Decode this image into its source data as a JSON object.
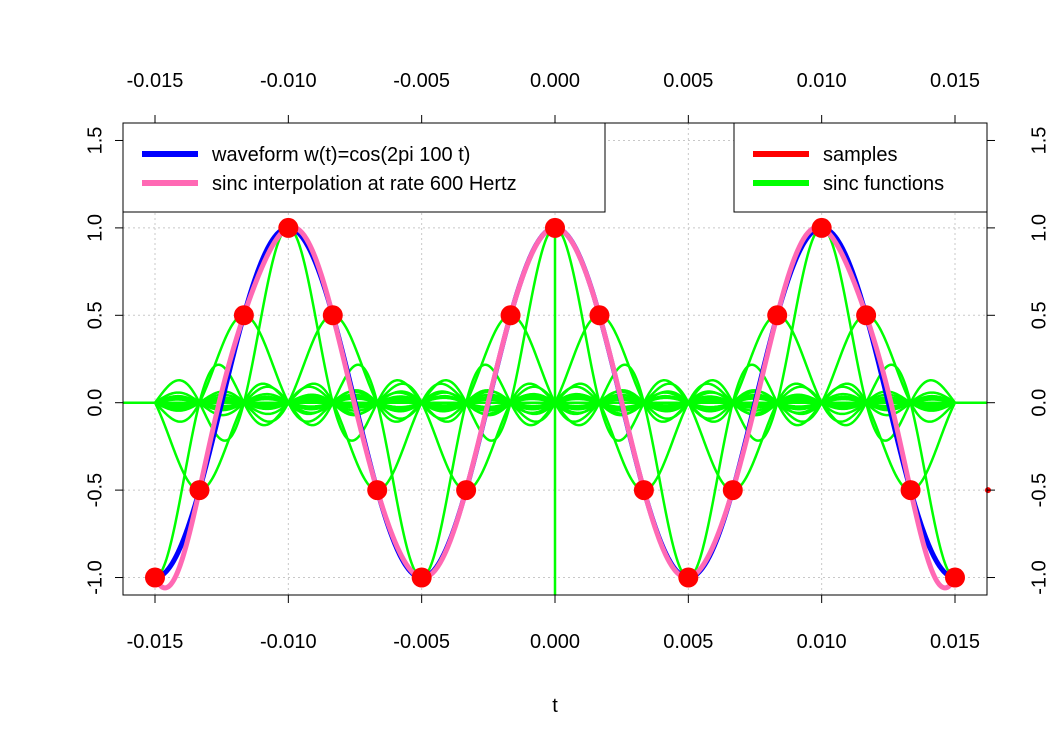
{
  "chart_data": {
    "type": "line",
    "xlabel": "t",
    "ylabel": "",
    "xlim": [
      -0.0162,
      0.0162
    ],
    "ylim": [
      -1.1,
      1.6
    ],
    "grid": true,
    "x_ticks": [
      "-0.015",
      "-0.010",
      "-0.005",
      "0.000",
      "0.005",
      "0.010",
      "0.015"
    ],
    "x_tick_values": [
      -0.015,
      -0.01,
      -0.005,
      0,
      0.005,
      0.01,
      0.015
    ],
    "y_ticks": [
      "-1.0",
      "-0.5",
      "0.0",
      "0.5",
      "1.0",
      "1.5"
    ],
    "y_tick_values": [
      -1.0,
      -0.5,
      0.0,
      0.5,
      1.0,
      1.5
    ],
    "waveform_frequency_hz": 100,
    "sample_rate_hz": 600,
    "samples": {
      "t": [
        -0.015,
        -0.013333,
        -0.011667,
        -0.01,
        -0.008333,
        -0.006667,
        -0.005,
        -0.003333,
        -0.001667,
        0.0,
        0.001667,
        0.003333,
        0.005,
        0.006667,
        0.008333,
        0.01,
        0.011667,
        0.013333,
        0.015
      ],
      "values": [
        -1.0,
        -0.5,
        0.5,
        1.0,
        0.5,
        -0.5,
        -1.0,
        -0.5,
        0.5,
        1.0,
        0.5,
        -0.5,
        -1.0,
        -0.5,
        0.5,
        1.0,
        0.5,
        -0.5,
        -1.0
      ]
    },
    "series": [
      {
        "name": "waveform w(t)=cos(2pi 100 t)",
        "color": "#0000ff"
      },
      {
        "name": "sinc interpolation at rate 600 Hertz",
        "color": "#ff69b4"
      },
      {
        "name": "samples",
        "color": "#ff0000"
      },
      {
        "name": "sinc functions",
        "color": "#00ff00"
      }
    ],
    "legend_left": {
      "placement": "top-left",
      "entries": [
        {
          "label": "waveform w(t)=cos(2pi 100 t)",
          "color": "#0000ff"
        },
        {
          "label": "sinc interpolation at rate 600 Hertz",
          "color": "#ff69b4"
        }
      ]
    },
    "legend_right": {
      "placement": "top-right",
      "entries": [
        {
          "label": "samples",
          "color": "#ff0000"
        },
        {
          "label": "sinc functions",
          "color": "#00ff00"
        }
      ]
    }
  }
}
